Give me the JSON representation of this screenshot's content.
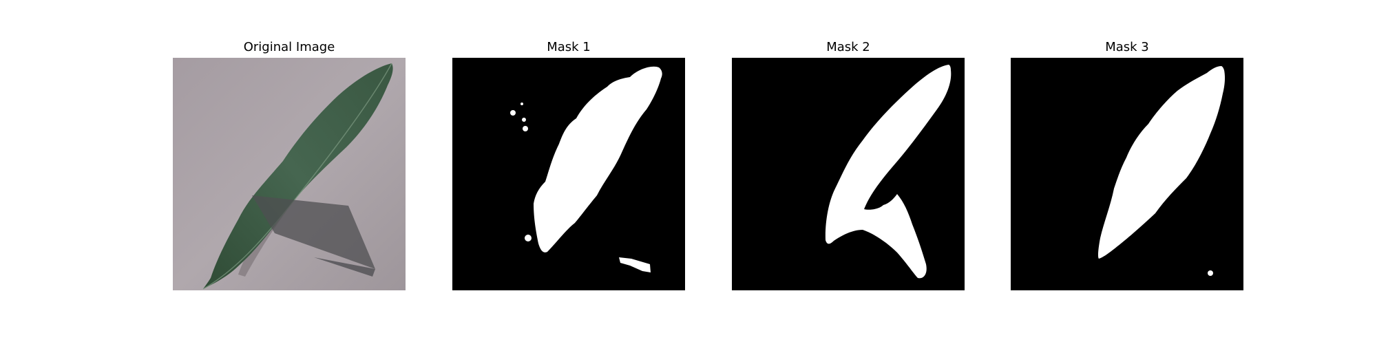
{
  "figure": {
    "panels": [
      {
        "title": "Original Image"
      },
      {
        "title": "Mask 1"
      },
      {
        "title": "Mask 2"
      },
      {
        "title": "Mask 3"
      }
    ],
    "colors": {
      "background": "#ffffff",
      "mask_background": "#000000",
      "mask_foreground": "#ffffff",
      "paper": "#a39aa0",
      "leaf": "#3d5a44",
      "shadow": "#5a5a5c"
    }
  }
}
